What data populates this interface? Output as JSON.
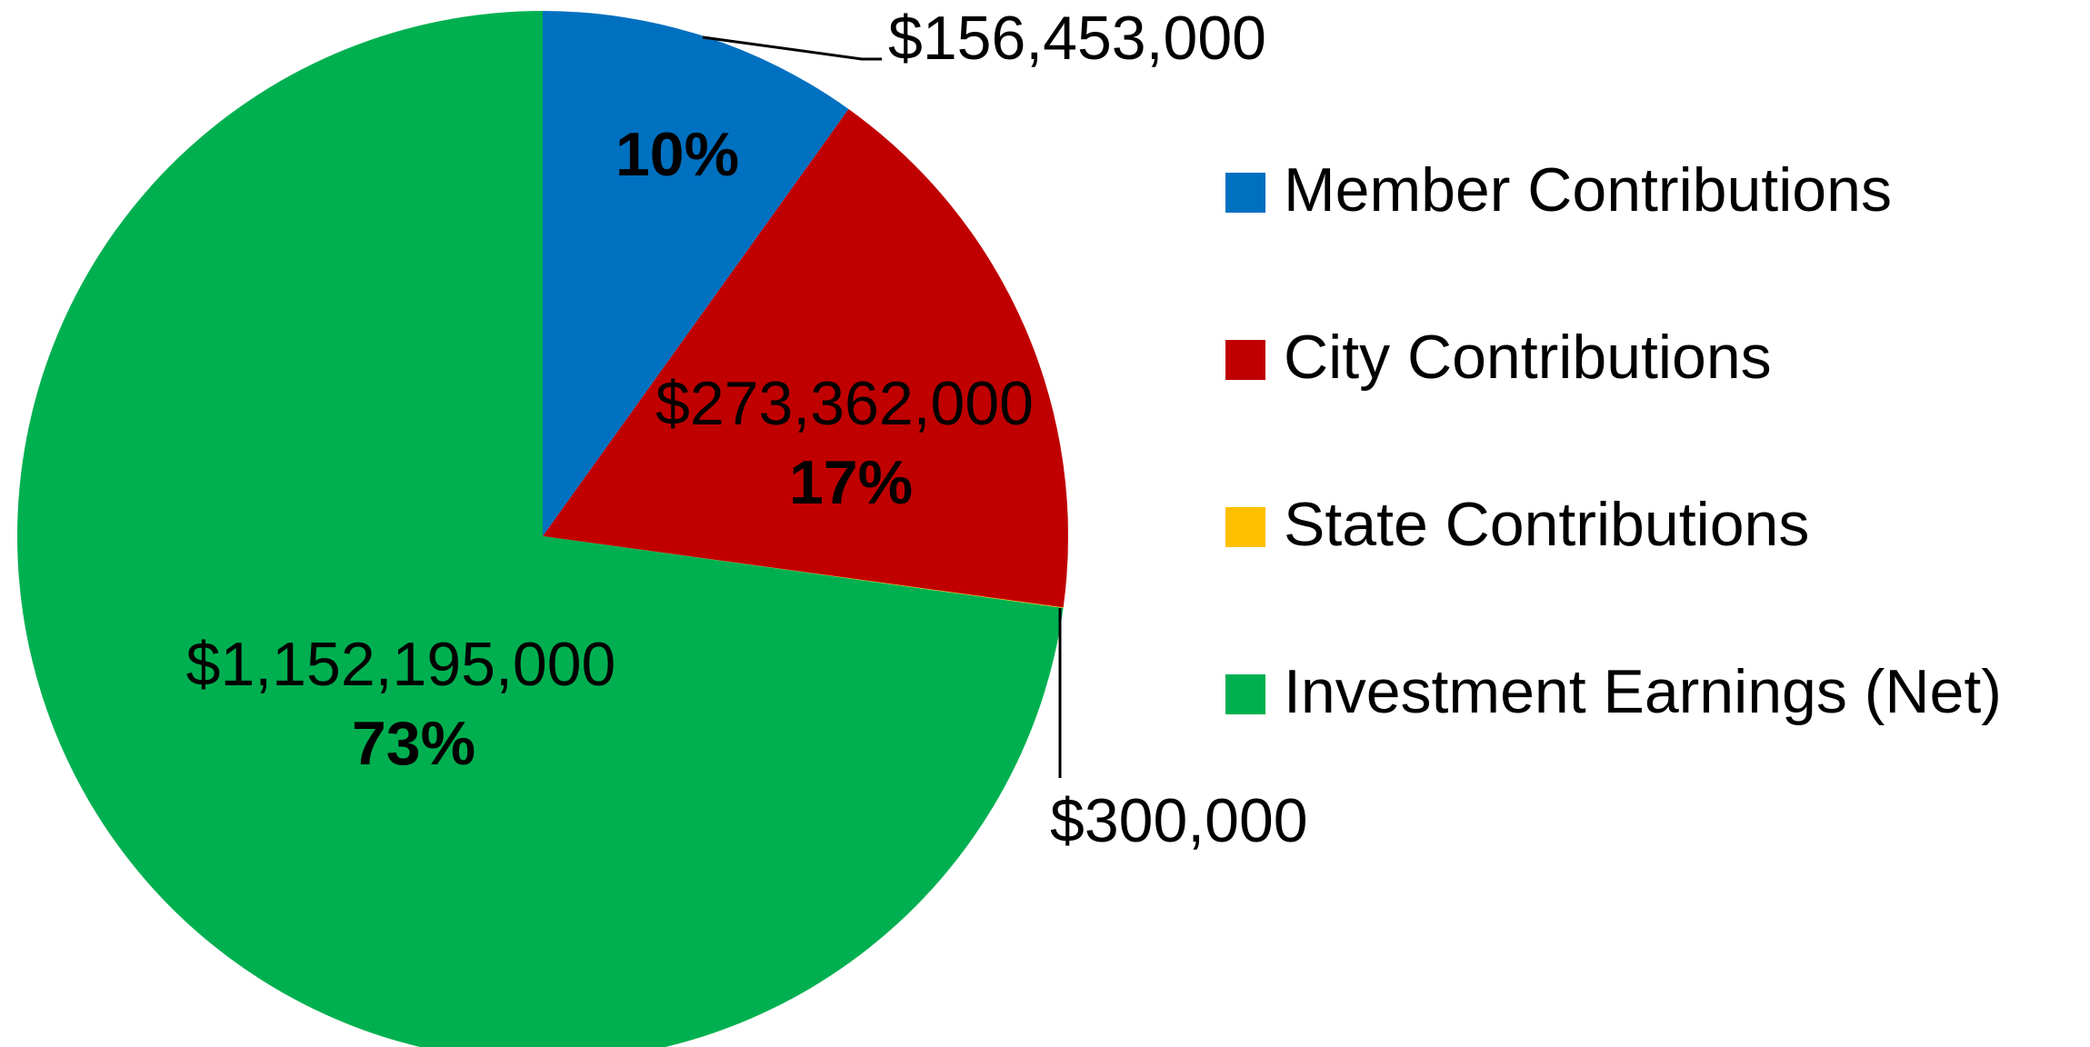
{
  "chart_data": {
    "type": "pie",
    "labels": [
      "Member Contributions",
      "City Contributions",
      "State Contributions",
      "Investment Earnings (Net)"
    ],
    "values": [
      156453000,
      273362000,
      300000,
      1152195000
    ],
    "value_labels": [
      "$156,453,000",
      "$273,362,000",
      "$300,000",
      "$1,152,195,000"
    ],
    "percent_labels": [
      "10%",
      "17%",
      null,
      "73%"
    ],
    "colors": [
      "#0070c0",
      "#c00000",
      "#ffc000",
      "#00b050"
    ],
    "legend": "right"
  }
}
